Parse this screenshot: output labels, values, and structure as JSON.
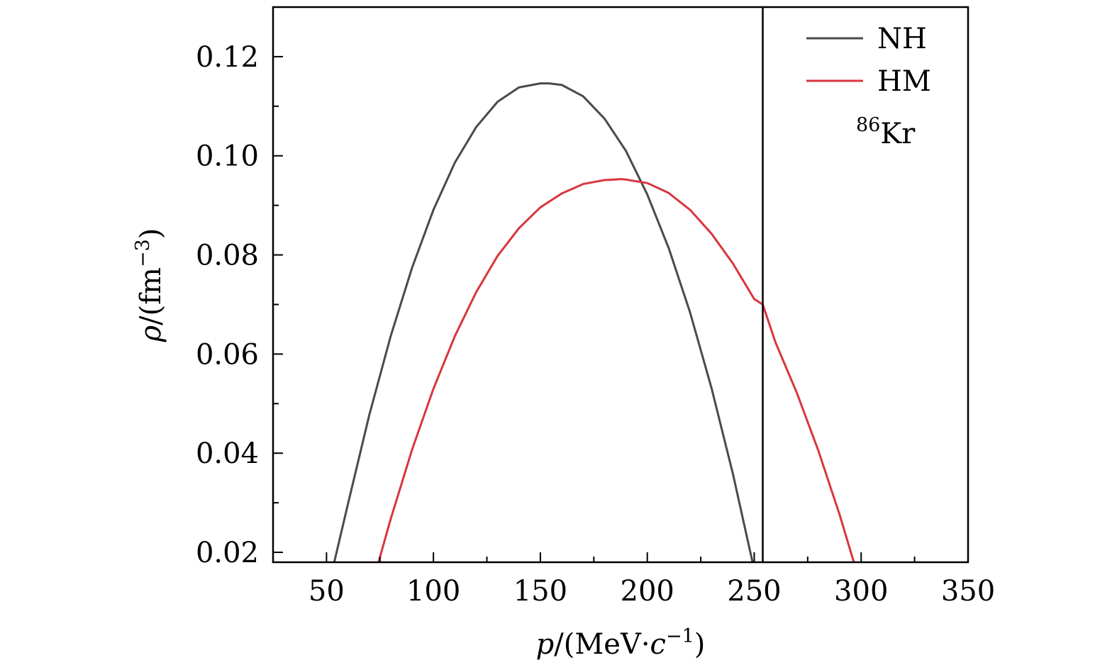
{
  "chart_data": {
    "type": "line",
    "title": "",
    "xlabel": {
      "var": "p",
      "open": "/(MeV·",
      "c": "c",
      "exp": "−1",
      "close": ")"
    },
    "ylabel": {
      "var": "ρ",
      "open": "/(fm",
      "exp": "−3",
      "close": ")"
    },
    "xlim": [
      25,
      350
    ],
    "ylim": [
      0.018,
      0.13
    ],
    "xticks": [
      "50",
      "100",
      "150",
      "200",
      "250",
      "300",
      "350"
    ],
    "xtick_values": [
      50,
      100,
      150,
      200,
      250,
      300,
      350
    ],
    "xminor_values": [
      75,
      125,
      175,
      225,
      275,
      325
    ],
    "yticks": [
      "0.02",
      "0.04",
      "0.06",
      "0.08",
      "0.10",
      "0.12"
    ],
    "ytick_values": [
      0.02,
      0.04,
      0.06,
      0.08,
      0.1,
      0.12
    ],
    "yminor_values": [
      0.03,
      0.05,
      0.07,
      0.09,
      0.11
    ],
    "grid": false,
    "legend_position": "top-right",
    "series": [
      {
        "name": "NH",
        "color": "#4a4a4a",
        "x": [
          53.5,
          60,
          70,
          80,
          90,
          100,
          110,
          120,
          130,
          140,
          150,
          154,
          160,
          170,
          180,
          190,
          200,
          210,
          220,
          230,
          240,
          250,
          254
        ],
        "y": [
          0.0178,
          0.0297,
          0.0477,
          0.0636,
          0.0774,
          0.0891,
          0.0986,
          0.1058,
          0.1109,
          0.1138,
          0.1146,
          0.1146,
          0.1143,
          0.112,
          0.1075,
          0.101,
          0.0922,
          0.0814,
          0.0684,
          0.0532,
          0.0359,
          0.0165,
          0.0082
        ]
      },
      {
        "name": "HM",
        "color": "#d9363e",
        "x": [
          74,
          80,
          90,
          100,
          110,
          120,
          130,
          140,
          150,
          160,
          170,
          180,
          188,
          190,
          200,
          210,
          220,
          230,
          240,
          250,
          254,
          260,
          270,
          280,
          290,
          300,
          303
        ],
        "y": [
          0.0175,
          0.0267,
          0.0407,
          0.053,
          0.0636,
          0.0725,
          0.0798,
          0.0854,
          0.0896,
          0.0924,
          0.0943,
          0.0951,
          0.0953,
          0.0952,
          0.0945,
          0.0925,
          0.0891,
          0.0843,
          0.0783,
          0.0711,
          0.07,
          0.0623,
          0.0521,
          0.0405,
          0.0275,
          0.0131,
          0.0088
        ]
      }
    ],
    "vertical_line": {
      "x": 254,
      "color": "#000000"
    },
    "annotation": {
      "sup": "86",
      "text": "Kr"
    }
  }
}
